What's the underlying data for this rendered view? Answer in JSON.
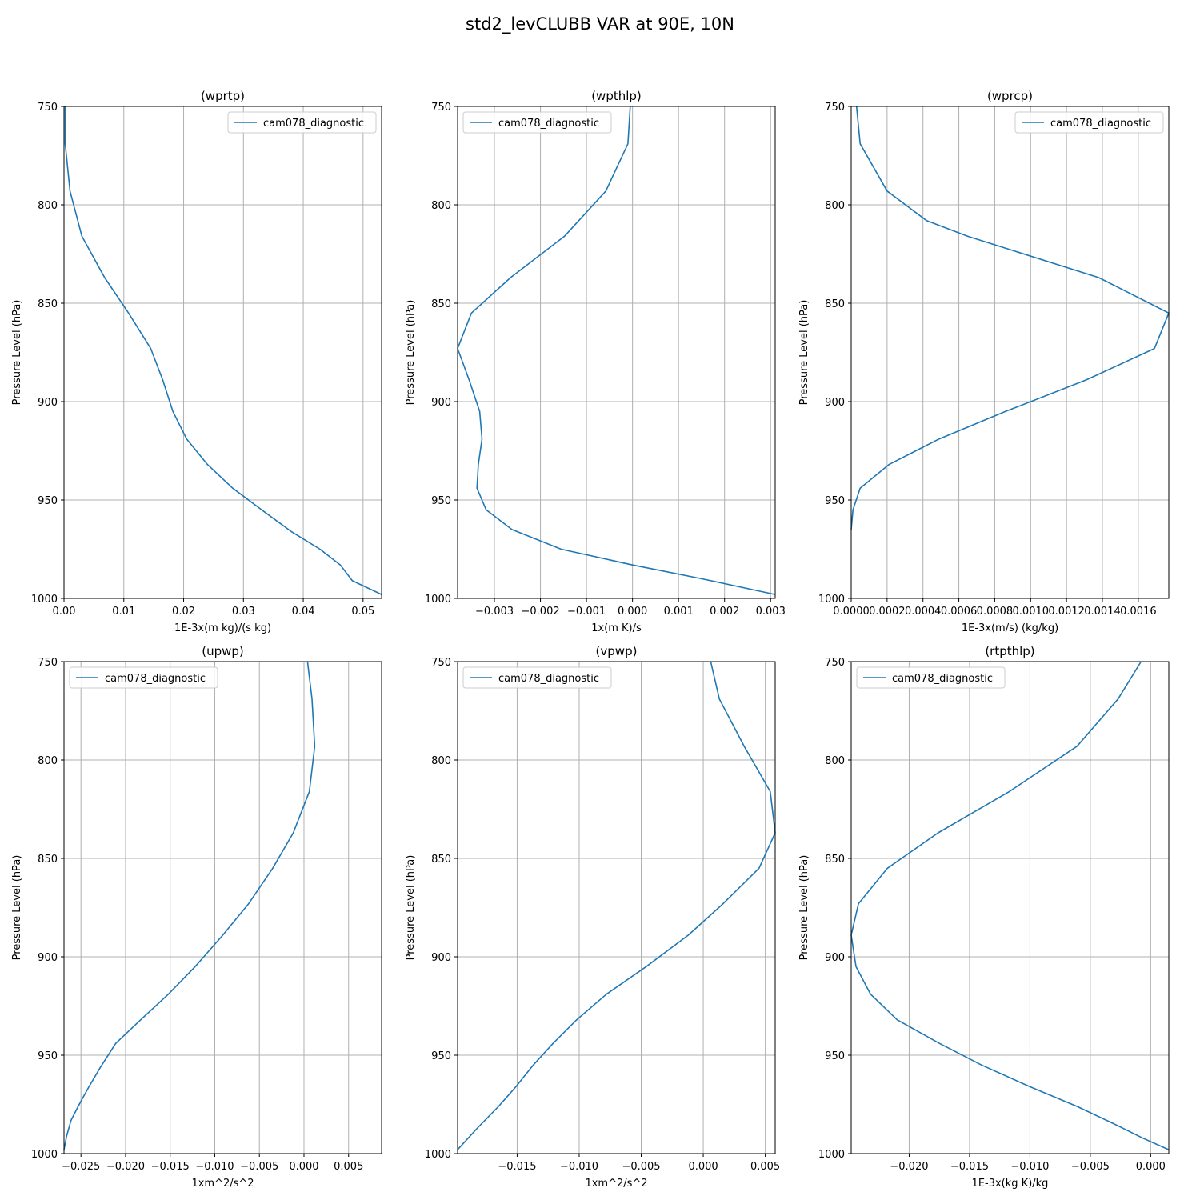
{
  "figure": {
    "title": "std2_levCLUBB VAR at 90E, 10N"
  },
  "colors": {
    "series": "#1f77b4",
    "grid": "#b0b0b0",
    "axis": "#000000"
  },
  "chart_data": [
    {
      "type": "line",
      "title": "(wprtp)",
      "xlabel": "1E-3x(m kg)/(s kg)",
      "ylabel": "Pressure Level (hPa)",
      "xlim": [
        0,
        0.0531
      ],
      "ylim": [
        1000,
        750
      ],
      "xticks": [
        0,
        0.01,
        0.02,
        0.03,
        0.04,
        0.05
      ],
      "xticklabels": [
        "0.00",
        "0.01",
        "0.02",
        "0.03",
        "0.04",
        "0.05"
      ],
      "yticks": [
        750,
        800,
        850,
        900,
        950,
        1000
      ],
      "yticklabels": [
        "750",
        "800",
        "850",
        "900",
        "950",
        "1000"
      ],
      "grid": true,
      "legend": {
        "position": "top-right",
        "entries": [
          "cam078_diagnostic"
        ]
      },
      "series": [
        {
          "name": "cam078_diagnostic",
          "points": [
            [
              0.0002,
              750
            ],
            [
              0.0002,
              769
            ],
            [
              0.001,
              793
            ],
            [
              0.003,
              816
            ],
            [
              0.0068,
              837
            ],
            [
              0.0108,
              855
            ],
            [
              0.0145,
              873
            ],
            [
              0.0165,
              889
            ],
            [
              0.0182,
              905
            ],
            [
              0.0205,
              919
            ],
            [
              0.024,
              932
            ],
            [
              0.0282,
              944
            ],
            [
              0.0335,
              956
            ],
            [
              0.038,
              966
            ],
            [
              0.0428,
              975
            ],
            [
              0.0462,
              983
            ],
            [
              0.0482,
              991
            ],
            [
              0.0531,
              998
            ]
          ]
        }
      ]
    },
    {
      "type": "line",
      "title": "(wpthlp)",
      "xlabel": "1x(m K)/s",
      "ylabel": "Pressure Level (hPa)",
      "xlim": [
        -0.0038,
        0.0031
      ],
      "ylim": [
        1000,
        750
      ],
      "xticks": [
        -0.003,
        -0.002,
        -0.001,
        0,
        0.001,
        0.002,
        0.003
      ],
      "xticklabels": [
        "−0.003",
        "−0.002",
        "−0.001",
        "0.000",
        "0.001",
        "0.002",
        "0.003"
      ],
      "yticks": [
        750,
        800,
        850,
        900,
        950,
        1000
      ],
      "yticklabels": [
        "750",
        "800",
        "850",
        "900",
        "950",
        "1000"
      ],
      "grid": true,
      "legend": {
        "position": "top-left",
        "entries": [
          "cam078_diagnostic"
        ]
      },
      "series": [
        {
          "name": "cam078_diagnostic",
          "points": [
            [
              -5e-05,
              750
            ],
            [
              -0.0001,
              769
            ],
            [
              -0.00058,
              793
            ],
            [
              -0.00148,
              816
            ],
            [
              -0.00265,
              837
            ],
            [
              -0.0035,
              855
            ],
            [
              -0.0038,
              873
            ],
            [
              -0.00355,
              889
            ],
            [
              -0.00332,
              905
            ],
            [
              -0.00327,
              919
            ],
            [
              -0.00335,
              932
            ],
            [
              -0.00338,
              944
            ],
            [
              -0.00318,
              955
            ],
            [
              -0.00262,
              965
            ],
            [
              -0.00155,
              975
            ],
            [
              0.0,
              983
            ],
            [
              0.0015,
              990
            ],
            [
              0.0031,
              998
            ]
          ]
        }
      ]
    },
    {
      "type": "line",
      "title": "(wprcp)",
      "xlabel": "1E-3x(m/s) (kg/kg)",
      "ylabel": "Pressure Level (hPa)",
      "xlim": [
        0,
        0.00177
      ],
      "ylim": [
        1000,
        750
      ],
      "xticks": [
        0,
        0.0002,
        0.0004,
        0.0006,
        0.0008,
        0.001,
        0.0012,
        0.0014,
        0.0016
      ],
      "xticklabels": [
        "0.0000",
        "0.0002",
        "0.0004",
        "0.0006",
        "0.0008",
        "0.0010",
        "0.0012",
        "0.0014",
        "0.0016"
      ],
      "yticks": [
        750,
        800,
        850,
        900,
        950,
        1000
      ],
      "yticklabels": [
        "750",
        "800",
        "850",
        "900",
        "950",
        "1000"
      ],
      "grid": true,
      "legend": {
        "position": "top-right",
        "entries": [
          "cam078_diagnostic"
        ]
      },
      "series": [
        {
          "name": "cam078_diagnostic",
          "points": [
            [
              3e-05,
              750
            ],
            [
              5e-05,
              769
            ],
            [
              0.0002,
              793
            ],
            [
              0.00042,
              808
            ],
            [
              0.00065,
              816
            ],
            [
              0.00138,
              837
            ],
            [
              0.00177,
              855
            ],
            [
              0.00169,
              873
            ],
            [
              0.00131,
              889
            ],
            [
              0.00086,
              905
            ],
            [
              0.00049,
              919
            ],
            [
              0.00021,
              932
            ],
            [
              5e-05,
              944
            ],
            [
              1e-05,
              955
            ],
            [
              0.0,
              965
            ]
          ]
        }
      ]
    },
    {
      "type": "line",
      "title": "(upwp)",
      "xlabel": "1xm^2/s^2",
      "ylabel": "Pressure Level (hPa)",
      "xlim": [
        -0.0269,
        0.0087
      ],
      "ylim": [
        1000,
        750
      ],
      "xticks": [
        -0.025,
        -0.02,
        -0.015,
        -0.01,
        -0.005,
        0,
        0.005
      ],
      "xticklabels": [
        "−0.025",
        "−0.020",
        "−0.015",
        "−0.010",
        "−0.005",
        "0.000",
        "0.005"
      ],
      "yticks": [
        750,
        800,
        850,
        900,
        950,
        1000
      ],
      "yticklabels": [
        "750",
        "800",
        "850",
        "900",
        "950",
        "1000"
      ],
      "grid": true,
      "legend": {
        "position": "top-left",
        "entries": [
          "cam078_diagnostic"
        ]
      },
      "series": [
        {
          "name": "cam078_diagnostic",
          "points": [
            [
              0.0004,
              750
            ],
            [
              0.0009,
              769
            ],
            [
              0.0012,
              793
            ],
            [
              0.0006,
              816
            ],
            [
              -0.0012,
              837
            ],
            [
              -0.0035,
              855
            ],
            [
              -0.0062,
              873
            ],
            [
              -0.0091,
              889
            ],
            [
              -0.0122,
              905
            ],
            [
              -0.0152,
              919
            ],
            [
              -0.0183,
              932
            ],
            [
              -0.0211,
              944
            ],
            [
              -0.0228,
              956
            ],
            [
              -0.0241,
              966
            ],
            [
              -0.0252,
              975
            ],
            [
              -0.0261,
              983
            ],
            [
              -0.0266,
              991
            ],
            [
              -0.0269,
              998
            ]
          ]
        }
      ]
    },
    {
      "type": "line",
      "title": "(vpwp)",
      "xlabel": "1xm^2/s^2",
      "ylabel": "Pressure Level (hPa)",
      "xlim": [
        -0.0198,
        0.0058
      ],
      "ylim": [
        1000,
        750
      ],
      "xticks": [
        -0.015,
        -0.01,
        -0.005,
        0,
        0.005
      ],
      "xticklabels": [
        "−0.015",
        "−0.010",
        "−0.005",
        "0.000",
        "0.005"
      ],
      "yticks": [
        750,
        800,
        850,
        900,
        950,
        1000
      ],
      "yticklabels": [
        "750",
        "800",
        "850",
        "900",
        "950",
        "1000"
      ],
      "grid": true,
      "legend": {
        "position": "top-left",
        "entries": [
          "cam078_diagnostic"
        ]
      },
      "series": [
        {
          "name": "cam078_diagnostic",
          "points": [
            [
              0.0006,
              750
            ],
            [
              0.0013,
              769
            ],
            [
              0.0033,
              793
            ],
            [
              0.0054,
              816
            ],
            [
              0.0058,
              837
            ],
            [
              0.0045,
              855
            ],
            [
              0.0016,
              873
            ],
            [
              -0.0012,
              889
            ],
            [
              -0.0046,
              905
            ],
            [
              -0.0078,
              919
            ],
            [
              -0.0102,
              932
            ],
            [
              -0.0121,
              944
            ],
            [
              -0.0137,
              955
            ],
            [
              -0.0151,
              966
            ],
            [
              -0.0165,
              976
            ],
            [
              -0.0182,
              987
            ],
            [
              -0.0198,
              998
            ]
          ]
        }
      ]
    },
    {
      "type": "line",
      "title": "(rtpthlp)",
      "xlabel": "1E-3x(kg K)/kg",
      "ylabel": "Pressure Level (hPa)",
      "xlim": [
        -0.0248,
        0.0015
      ],
      "ylim": [
        1000,
        750
      ],
      "xticks": [
        -0.02,
        -0.015,
        -0.01,
        -0.005,
        0
      ],
      "xticklabels": [
        "−0.020",
        "−0.015",
        "−0.010",
        "−0.005",
        "0.000"
      ],
      "yticks": [
        750,
        800,
        850,
        900,
        950,
        1000
      ],
      "yticklabels": [
        "750",
        "800",
        "850",
        "900",
        "950",
        "1000"
      ],
      "grid": true,
      "legend": {
        "position": "top-left",
        "entries": [
          "cam078_diagnostic"
        ]
      },
      "series": [
        {
          "name": "cam078_diagnostic",
          "points": [
            [
              -0.0008,
              750
            ],
            [
              -0.0027,
              769
            ],
            [
              -0.0061,
              793
            ],
            [
              -0.0117,
              816
            ],
            [
              -0.0176,
              837
            ],
            [
              -0.0218,
              855
            ],
            [
              -0.0242,
              873
            ],
            [
              -0.0248,
              889
            ],
            [
              -0.0244,
              905
            ],
            [
              -0.0232,
              919
            ],
            [
              -0.021,
              932
            ],
            [
              -0.0175,
              944
            ],
            [
              -0.014,
              955
            ],
            [
              -0.01,
              966
            ],
            [
              -0.0061,
              976
            ],
            [
              -0.003,
              985
            ],
            [
              -0.0007,
              992
            ],
            [
              0.0015,
              998
            ]
          ]
        }
      ]
    }
  ]
}
